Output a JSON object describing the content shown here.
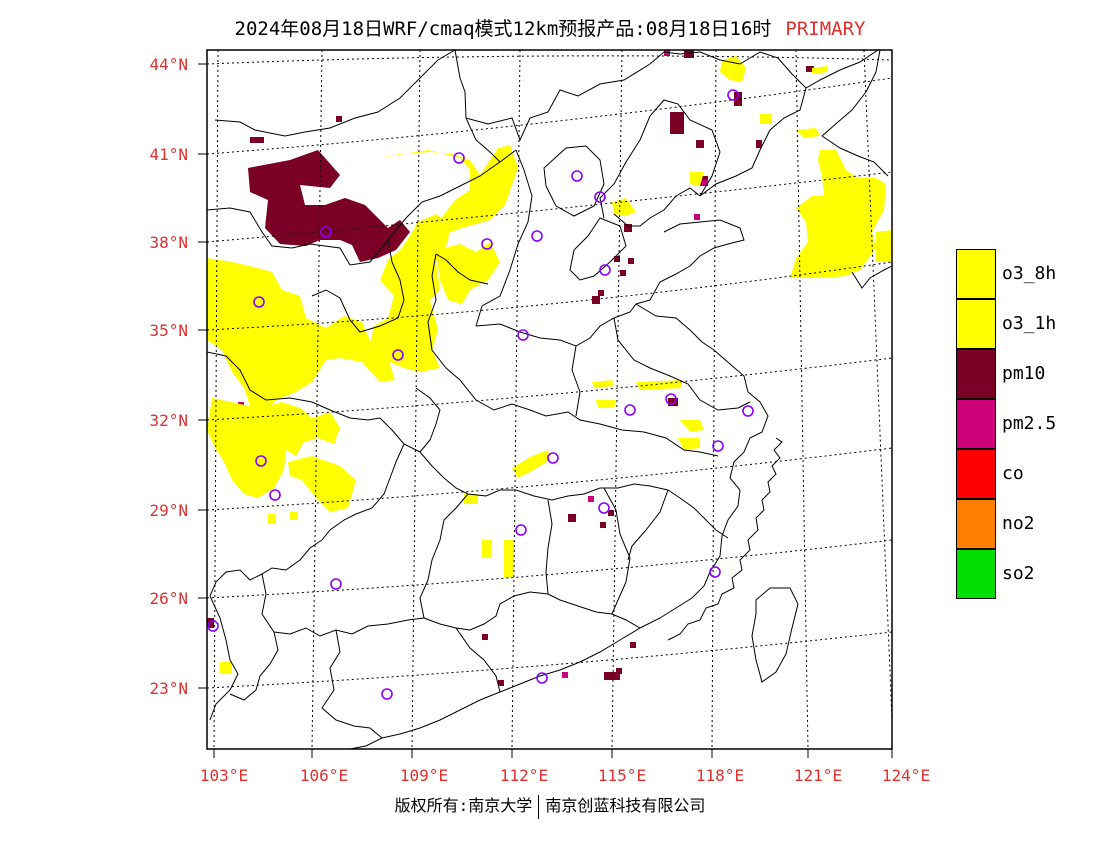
{
  "header": {
    "title": "2024年08月18日WRF/cmaq模式12km预报产品:08月18日16时",
    "tag": "PRIMARY"
  },
  "axes": {
    "lat_labels": [
      "44°N",
      "41°N",
      "38°N",
      "35°N",
      "32°N",
      "29°N",
      "26°N",
      "23°N"
    ],
    "lon_labels": [
      "103°E",
      "106°E",
      "109°E",
      "112°E",
      "115°E",
      "118°E",
      "121°E",
      "124°E"
    ]
  },
  "legend": [
    {
      "label": "o3_8h",
      "color": "#ffff00"
    },
    {
      "label": "o3_1h",
      "color": "#ffff00"
    },
    {
      "label": "pm10",
      "color": "#7a0026"
    },
    {
      "label": "pm2.5",
      "color": "#cc0077"
    },
    {
      "label": "co",
      "color": "#ff0000"
    },
    {
      "label": "no2",
      "color": "#ff8000"
    },
    {
      "label": "so2",
      "color": "#00dd00"
    }
  ],
  "footer": {
    "left": "版权所有:南京大学",
    "right": "南京创蓝科技有限公司"
  },
  "colors": {
    "o3": "#ffff00",
    "pm10": "#7a0026",
    "pm25": "#cc0077",
    "station": "#8a00ff",
    "label": "#e03030"
  }
}
